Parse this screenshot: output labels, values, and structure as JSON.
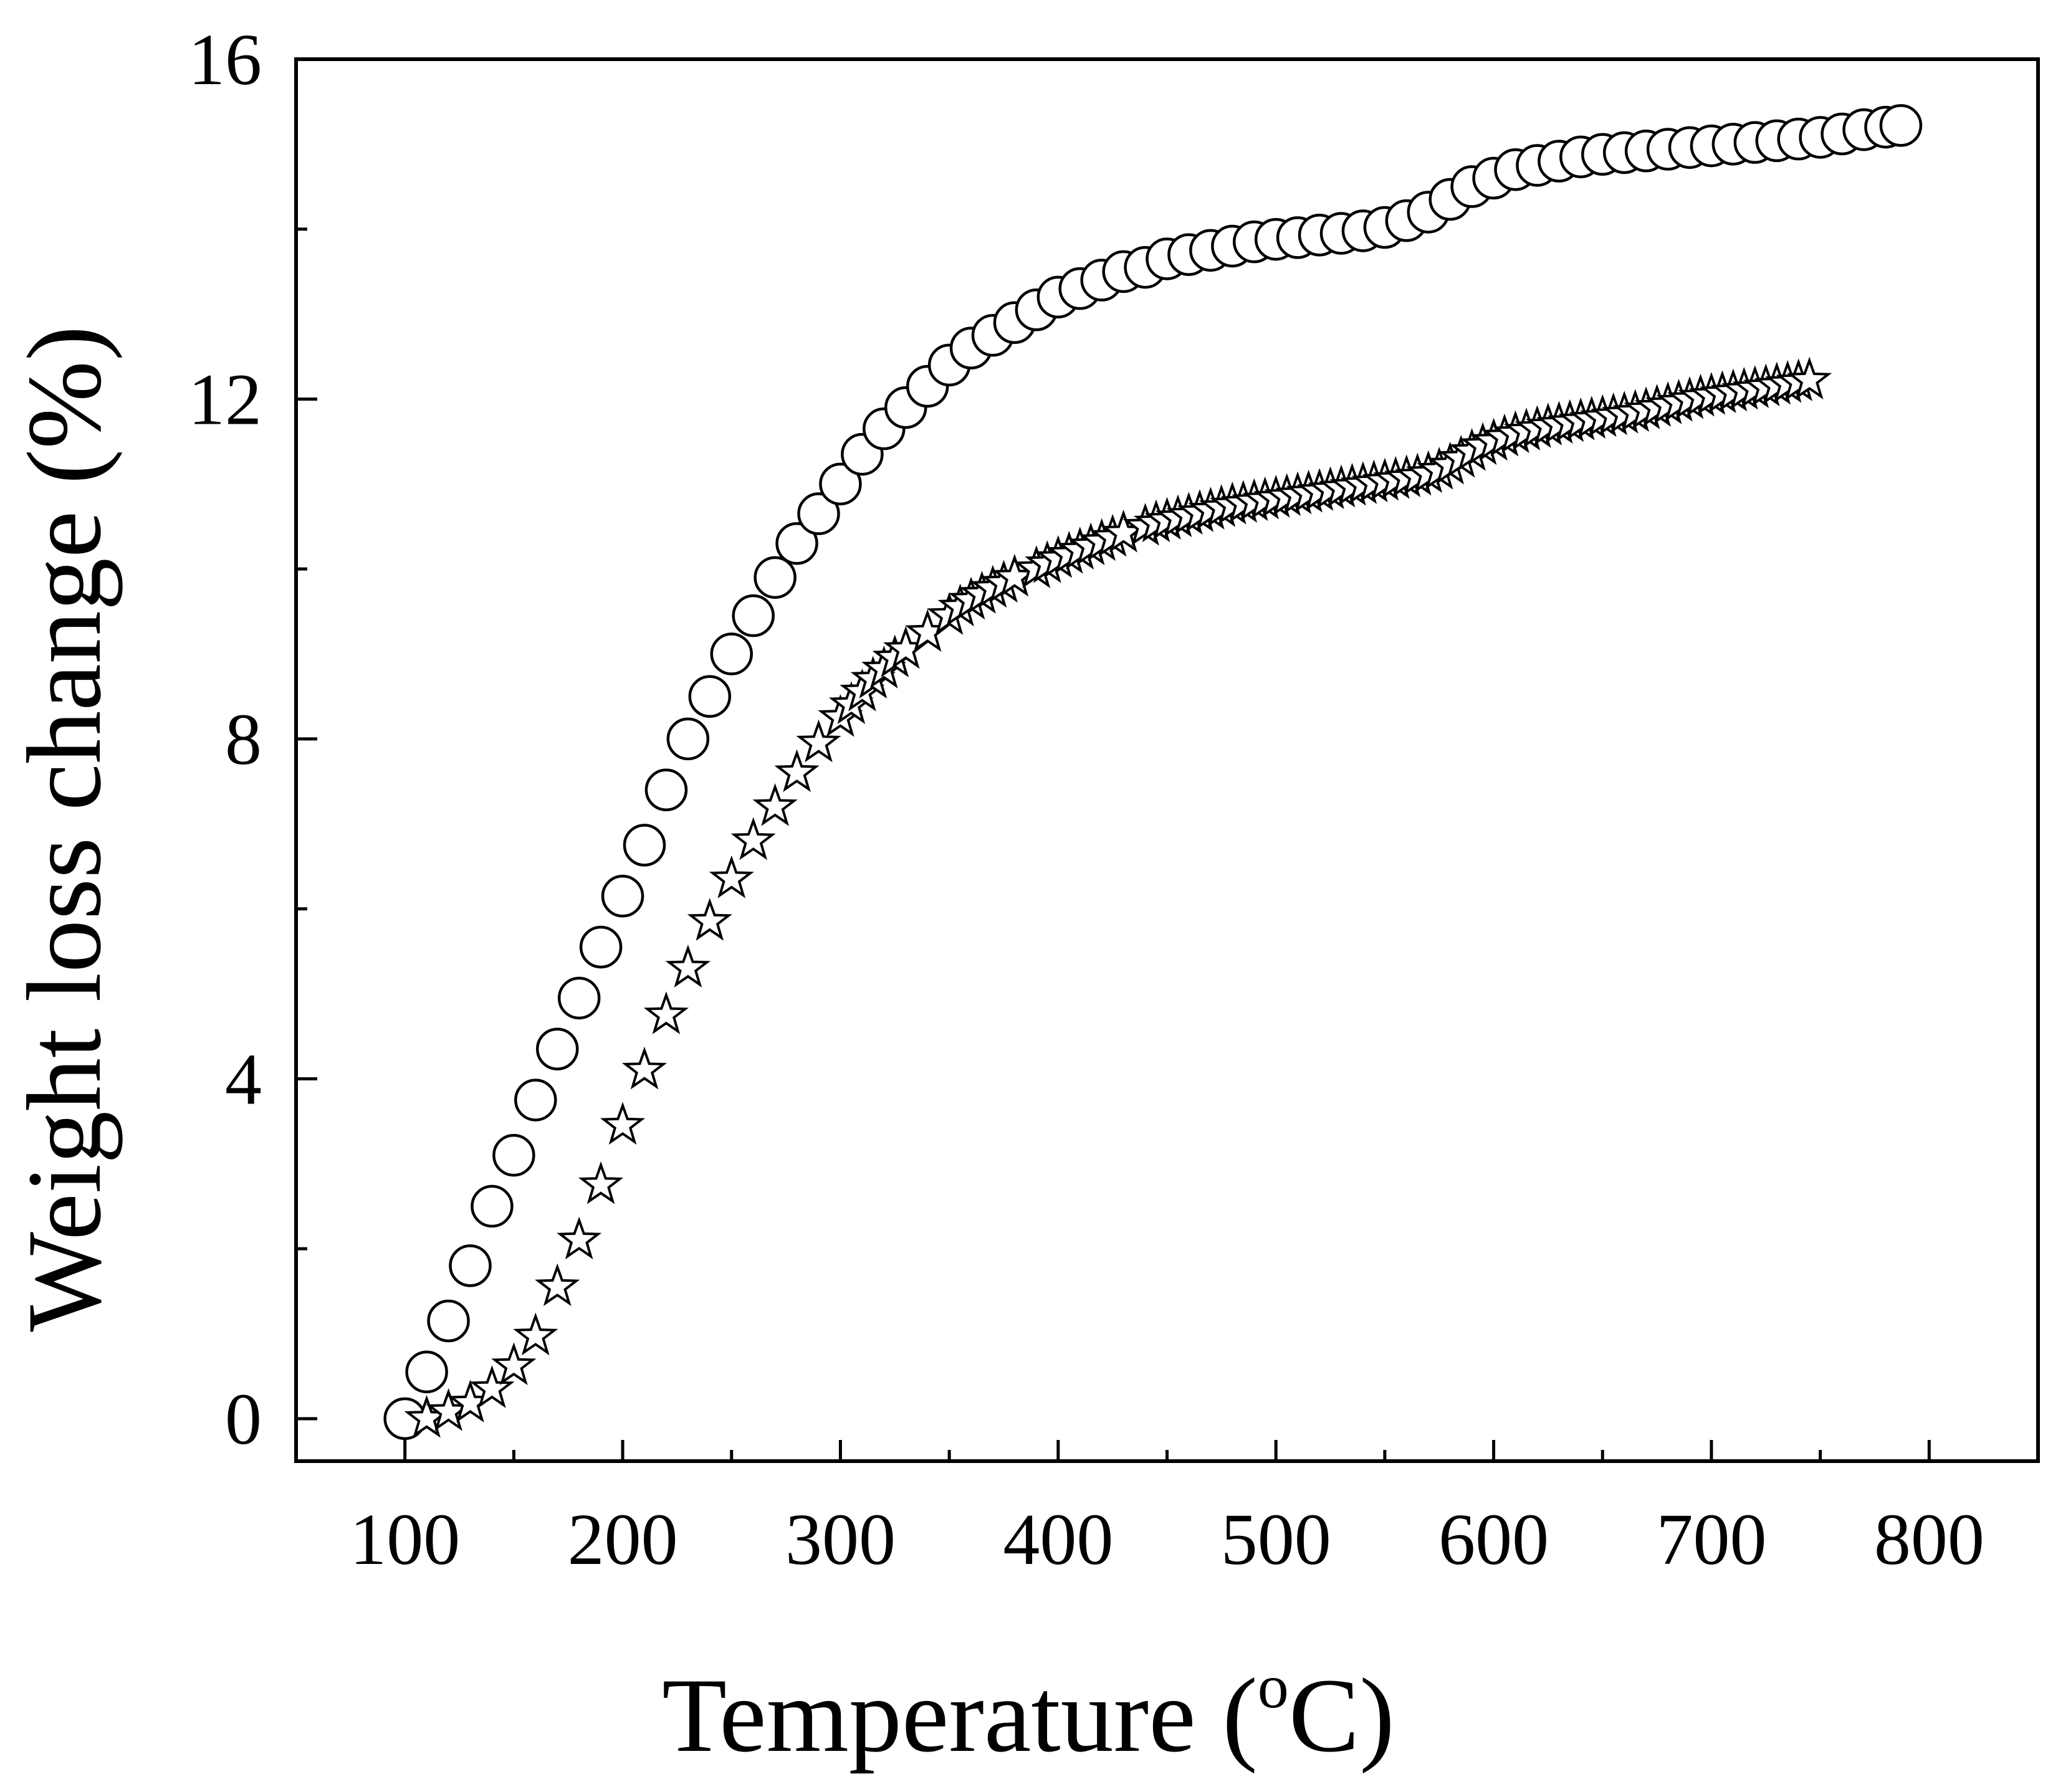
{
  "chart_data": {
    "type": "scatter",
    "title": "",
    "xlabel": "Temperature (",
    "xlabel_unit_sup": "o",
    "xlabel_unit": "C)",
    "ylabel": "Weight loss change (%)",
    "xlim": [
      50,
      850
    ],
    "ylim": [
      -0.5,
      16
    ],
    "xticks": [
      100,
      200,
      300,
      400,
      500,
      600,
      700,
      800
    ],
    "xtick_labels": [
      "100",
      "200",
      "300",
      "400",
      "500",
      "600",
      "700",
      "800"
    ],
    "yticks": [
      0,
      4,
      8,
      12,
      16
    ],
    "ytick_labels": [
      "0",
      "4",
      "8",
      "12",
      "16"
    ],
    "grid": false,
    "legend": "none",
    "series": [
      {
        "name": "circles",
        "marker": "circle",
        "x": [
          100,
          110,
          120,
          130,
          140,
          150,
          160,
          170,
          180,
          190,
          200,
          210,
          220,
          230,
          240,
          250,
          260,
          270,
          280,
          290,
          300,
          310,
          320,
          330,
          340,
          350,
          360,
          370,
          380,
          390,
          400,
          410,
          420,
          430,
          440,
          450,
          460,
          470,
          480,
          490,
          500,
          510,
          520,
          530,
          540,
          550,
          560,
          570,
          580,
          590,
          600,
          610,
          620,
          630,
          640,
          650,
          660,
          670,
          680,
          690,
          700,
          710,
          720,
          730,
          740,
          750,
          760,
          770,
          780,
          787
        ],
        "y": [
          0.0,
          0.55,
          1.15,
          1.8,
          2.5,
          3.1,
          3.75,
          4.35,
          4.95,
          5.55,
          6.15,
          6.75,
          7.4,
          8.0,
          8.5,
          9.0,
          9.45,
          9.9,
          10.3,
          10.65,
          11.0,
          11.35,
          11.65,
          11.9,
          12.15,
          12.4,
          12.6,
          12.75,
          12.9,
          13.05,
          13.2,
          13.3,
          13.4,
          13.5,
          13.55,
          13.65,
          13.7,
          13.75,
          13.8,
          13.85,
          13.88,
          13.9,
          13.93,
          13.95,
          13.98,
          14.02,
          14.1,
          14.2,
          14.35,
          14.5,
          14.6,
          14.7,
          14.75,
          14.8,
          14.85,
          14.88,
          14.9,
          14.92,
          14.94,
          14.96,
          14.98,
          15.0,
          15.02,
          15.04,
          15.06,
          15.08,
          15.12,
          15.17,
          15.2,
          15.22
        ]
      },
      {
        "name": "stars",
        "marker": "star",
        "x": [
          110,
          120,
          130,
          140,
          150,
          160,
          170,
          180,
          190,
          200,
          210,
          220,
          230,
          240,
          250,
          260,
          270,
          280,
          290,
          300,
          305,
          310,
          315,
          320,
          325,
          330,
          340,
          350,
          355,
          360,
          365,
          370,
          375,
          380,
          390,
          395,
          400,
          405,
          410,
          415,
          420,
          425,
          430,
          440,
          445,
          450,
          455,
          460,
          465,
          470,
          475,
          480,
          485,
          490,
          495,
          500,
          505,
          510,
          515,
          520,
          525,
          530,
          535,
          540,
          545,
          550,
          555,
          560,
          565,
          570,
          575,
          580,
          585,
          590,
          595,
          600,
          605,
          610,
          615,
          620,
          625,
          630,
          635,
          640,
          645,
          650,
          655,
          660,
          665,
          670,
          675,
          680,
          685,
          690,
          695,
          700,
          705,
          710,
          715,
          720,
          725,
          730,
          735,
          740,
          745
        ],
        "y": [
          0.0,
          0.08,
          0.18,
          0.35,
          0.62,
          0.97,
          1.55,
          2.1,
          2.75,
          3.45,
          4.1,
          4.75,
          5.3,
          5.85,
          6.35,
          6.8,
          7.2,
          7.6,
          7.95,
          8.25,
          8.4,
          8.55,
          8.7,
          8.82,
          8.95,
          9.05,
          9.25,
          9.45,
          9.55,
          9.63,
          9.7,
          9.77,
          9.83,
          9.9,
          10.0,
          10.06,
          10.12,
          10.17,
          10.22,
          10.27,
          10.32,
          10.37,
          10.42,
          10.5,
          10.54,
          10.57,
          10.6,
          10.63,
          10.66,
          10.69,
          10.72,
          10.75,
          10.77,
          10.79,
          10.81,
          10.83,
          10.85,
          10.87,
          10.89,
          10.91,
          10.93,
          10.95,
          10.97,
          10.99,
          11.01,
          11.03,
          11.05,
          11.07,
          11.09,
          11.12,
          11.16,
          11.22,
          11.3,
          11.38,
          11.45,
          11.5,
          11.55,
          11.59,
          11.62,
          11.65,
          11.68,
          11.7,
          11.72,
          11.74,
          11.76,
          11.78,
          11.8,
          11.82,
          11.84,
          11.87,
          11.9,
          11.93,
          11.96,
          11.99,
          12.02,
          12.04,
          12.06,
          12.08,
          12.1,
          12.12,
          12.14,
          12.16,
          12.18,
          12.2,
          12.22
        ]
      }
    ]
  }
}
